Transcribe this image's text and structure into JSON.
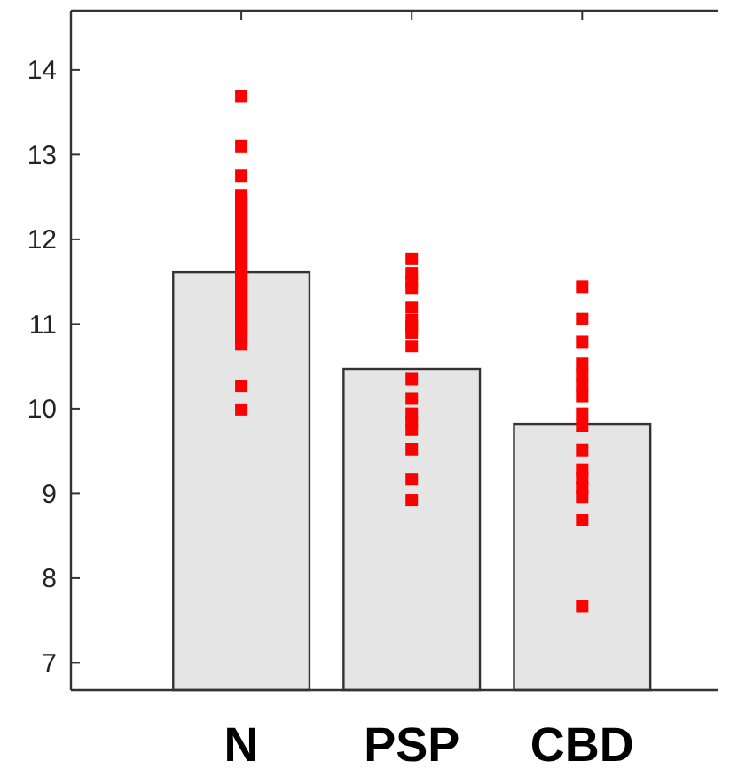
{
  "chart_data": {
    "type": "bar",
    "categories": [
      "N",
      "PSP",
      "CBD"
    ],
    "ylim": [
      6.68,
      14.7
    ],
    "yticks": [
      7,
      8,
      9,
      10,
      11,
      12,
      13,
      14
    ],
    "marker": "square",
    "grid": false,
    "series": [
      {
        "color": "#e5e5e5",
        "values": [
          11.61,
          10.47,
          9.82
        ]
      },
      {
        "type": "scatter",
        "color": "#ff0000",
        "x": [
          "N",
          "N",
          "N",
          "N",
          "N",
          "N",
          "N",
          "N",
          "N",
          "N",
          "N",
          "N",
          "N",
          "N",
          "N",
          "N",
          "N",
          "N",
          "N",
          "N",
          "N",
          "N",
          "N",
          "N",
          "N",
          "N",
          "N",
          "N",
          "N",
          "N",
          "N",
          "N",
          "N",
          "N",
          "N",
          "N",
          "N",
          "N",
          "N",
          "N",
          "N",
          "PSP",
          "PSP",
          "PSP",
          "PSP",
          "PSP",
          "PSP",
          "PSP",
          "PSP",
          "PSP",
          "PSP",
          "PSP",
          "PSP",
          "PSP",
          "PSP",
          "PSP",
          "PSP",
          "PSP",
          "CBD",
          "CBD",
          "CBD",
          "CBD",
          "CBD",
          "CBD",
          "CBD",
          "CBD",
          "CBD",
          "CBD",
          "CBD",
          "CBD",
          "CBD",
          "CBD",
          "CBD",
          "CBD"
        ],
        "values": [
          13.69,
          13.1,
          12.75,
          12.52,
          12.47,
          12.42,
          12.37,
          12.32,
          12.27,
          12.22,
          12.17,
          12.12,
          12.07,
          12.02,
          11.97,
          11.92,
          11.87,
          11.82,
          11.77,
          11.72,
          11.67,
          11.62,
          11.57,
          11.52,
          11.47,
          11.42,
          11.37,
          11.32,
          11.27,
          11.22,
          11.17,
          11.12,
          11.07,
          11.02,
          10.97,
          10.92,
          10.87,
          10.82,
          10.76,
          10.27,
          9.99,
          11.77,
          11.6,
          11.5,
          11.42,
          11.2,
          11.05,
          10.97,
          10.9,
          10.74,
          10.35,
          10.12,
          9.94,
          9.85,
          9.75,
          9.52,
          9.17,
          8.92,
          11.44,
          11.06,
          10.79,
          10.53,
          10.4,
          10.28,
          10.15,
          9.94,
          9.8,
          9.51,
          9.28,
          9.18,
          9.07,
          8.96,
          8.69,
          7.67
        ]
      }
    ]
  }
}
